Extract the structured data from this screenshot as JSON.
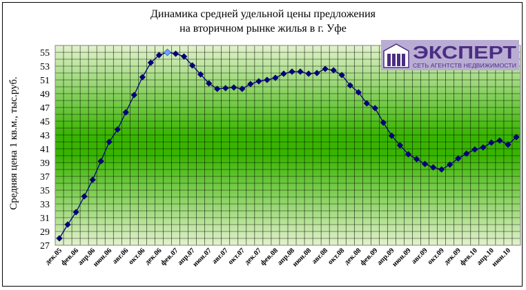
{
  "chart_data": {
    "type": "line",
    "title_lines": [
      "Динамика средней удельной цены предложения",
      "на вторичном рынке жилья в г. Уфе"
    ],
    "xlabel": "",
    "ylabel": "Средняя цена 1 кв.м., тыс.руб.",
    "ylim": [
      27,
      56
    ],
    "yticks": [
      27,
      29,
      31,
      33,
      35,
      37,
      39,
      41,
      43,
      45,
      47,
      49,
      51,
      53,
      55
    ],
    "grid": true,
    "legend": "none",
    "x_tick_labels": [
      "дек.05",
      "фев.06",
      "апр.06",
      "июн.06",
      "авг.06",
      "окт.06",
      "дек.06",
      "фев.07",
      "апр.07",
      "июн.07",
      "авг.07",
      "окт.07",
      "дек.07",
      "фев.08",
      "апр.08",
      "июн.08",
      "авг.08",
      "окт.08",
      "дек.08",
      "фев.09",
      "апр.09",
      "июн.09",
      "авг.09",
      "окт.09",
      "дек.09",
      "фев.10",
      "апр.10",
      "июн.10"
    ],
    "series": [
      {
        "values": [
          28.0,
          30.0,
          31.8,
          34.1,
          36.5,
          39.2,
          42.0,
          43.8,
          46.3,
          48.8,
          51.4,
          53.5,
          54.6,
          55.0,
          54.8,
          54.4,
          53.1,
          51.8,
          50.5,
          49.7,
          49.8,
          49.9,
          49.7,
          50.4,
          50.8,
          51.0,
          51.3,
          51.9,
          52.2,
          52.2,
          51.9,
          52.0,
          52.6,
          52.4,
          51.7,
          50.2,
          49.2,
          47.6,
          46.9,
          44.8,
          42.9,
          41.5,
          40.2,
          39.5,
          38.8,
          38.3,
          38.0,
          38.7,
          39.6,
          40.3,
          40.9,
          41.2,
          41.9,
          42.2,
          41.6,
          42.7
        ],
        "highlight_index": 13
      }
    ],
    "colors": {
      "line": "#000080",
      "marker": "#000080",
      "highlight": "#6ea0ff",
      "grid": "#000000",
      "plot_edge": "#d9edc0",
      "plot_center": "#37b500"
    }
  },
  "logo": {
    "name": "ЭКСПЕРТ",
    "tagline": "СЕТЬ АГЕНТСТВ НЕДВИЖИМОСТИ",
    "colors": {
      "brand": "#4b2d83",
      "bg": "#b3a6cf"
    }
  }
}
